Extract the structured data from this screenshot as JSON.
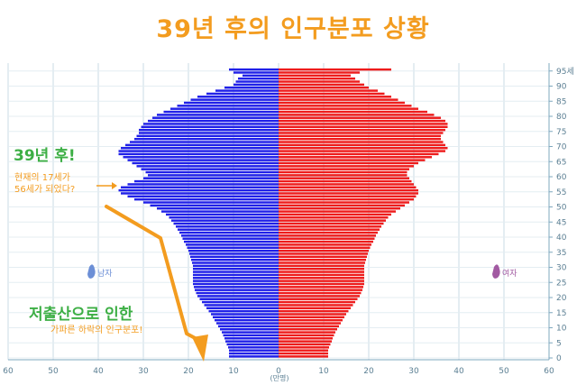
{
  "title": "39년 후의 인구분포 상황",
  "annotations": {
    "headline1": "39년 후!",
    "note1_line1": "현재의 17세가",
    "note1_line2": "56세가 되었다?",
    "headline2": "저출산으로 인한",
    "note2": "가파른 하락의 인구분포!"
  },
  "colors": {
    "male": "#2020e8",
    "female": "#ee1c1c",
    "accent": "#f39c1f",
    "highlight": "#3daf45"
  },
  "chart_data": {
    "type": "bar",
    "orientation": "horizontal-population-pyramid",
    "x_ticks": [
      "60",
      "50",
      "40",
      "30",
      "20",
      "10",
      "0",
      "10",
      "20",
      "30",
      "40",
      "50",
      "60"
    ],
    "xlim": [
      -60,
      60
    ],
    "x_unit": "(만명)",
    "y_ticks": [
      "0",
      "5",
      "10",
      "15",
      "20",
      "25",
      "30",
      "35",
      "40",
      "45",
      "50",
      "55",
      "60",
      "65",
      "70",
      "75",
      "80",
      "85",
      "90",
      "95세"
    ],
    "ylim": [
      0,
      95
    ],
    "legend": {
      "male": "남자",
      "female": "여자"
    },
    "series": [
      {
        "name": "남자",
        "values": [
          11,
          11,
          11,
          11.2,
          11.5,
          11.8,
          12,
          12.3,
          12.6,
          13,
          13.4,
          13.8,
          14.2,
          14.6,
          15,
          15.5,
          16,
          16.5,
          17,
          17.5,
          18,
          18.3,
          18.6,
          18.8,
          19,
          19,
          19,
          19,
          19,
          19,
          19,
          19.2,
          19.4,
          19.6,
          19.8,
          20,
          20.3,
          20.6,
          21,
          21.3,
          21.6,
          22,
          22.4,
          22.8,
          23.3,
          23.8,
          24.3,
          25,
          26,
          27,
          28.5,
          30,
          32,
          33.5,
          35,
          35.5,
          35,
          33.5,
          32,
          30,
          29,
          29.5,
          30.5,
          31.5,
          32.5,
          33.5,
          34.5,
          35.5,
          35.5,
          35,
          34,
          33,
          32,
          31.5,
          31,
          31,
          30.5,
          30,
          29,
          28,
          27,
          25.5,
          24,
          22.5,
          21,
          19.5,
          18,
          16,
          14,
          12,
          10,
          9.5,
          9,
          8,
          10,
          11
        ]
      },
      {
        "name": "여자",
        "values": [
          11,
          11,
          11,
          11.2,
          11.5,
          11.8,
          12,
          12.3,
          12.6,
          13,
          13.4,
          13.8,
          14.2,
          14.6,
          15,
          15.5,
          16,
          16.5,
          17,
          17.5,
          18,
          18.3,
          18.6,
          18.8,
          19,
          19,
          19,
          19,
          19,
          19,
          19,
          19.2,
          19.4,
          19.6,
          19.8,
          20,
          20.3,
          20.6,
          21,
          21.3,
          21.6,
          22,
          22.4,
          22.8,
          23.3,
          23.8,
          24.3,
          25,
          26,
          27,
          28,
          29,
          30,
          30.5,
          31,
          31,
          30.5,
          30,
          29.5,
          29,
          28.5,
          28.5,
          29,
          30,
          31,
          32.5,
          34,
          35.5,
          37,
          37.5,
          37,
          36.5,
          36,
          36,
          36.5,
          37,
          37.5,
          37.5,
          37,
          36,
          34.5,
          33,
          31,
          29.5,
          28,
          26.5,
          25,
          23.5,
          22,
          20,
          19,
          18,
          17,
          16,
          18,
          25
        ]
      }
    ]
  }
}
